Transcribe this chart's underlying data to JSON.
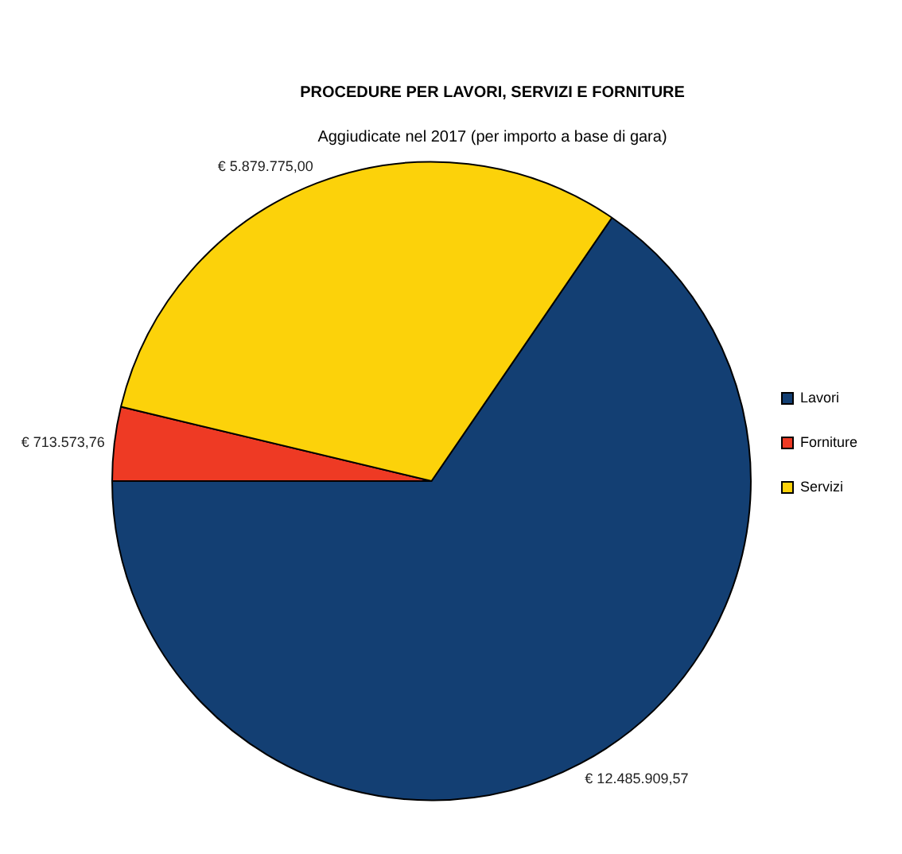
{
  "chart_data": {
    "type": "pie",
    "title": "PROCEDURE PER LAVORI, SERVIZI E FORNITURE",
    "subtitle": "Aggiudicate nel 2017 (per importo a base di gara)",
    "categories": [
      "Lavori",
      "Forniture",
      "Servizi"
    ],
    "values": [
      12485909.57,
      713573.76,
      5879775.0
    ],
    "value_labels": [
      "€ 12.485.909,57",
      "€ 713.573,76",
      "€ 5.879.775,00"
    ],
    "colors": [
      "#133f73",
      "#ee3a24",
      "#fcd20a"
    ],
    "legend": "right"
  }
}
